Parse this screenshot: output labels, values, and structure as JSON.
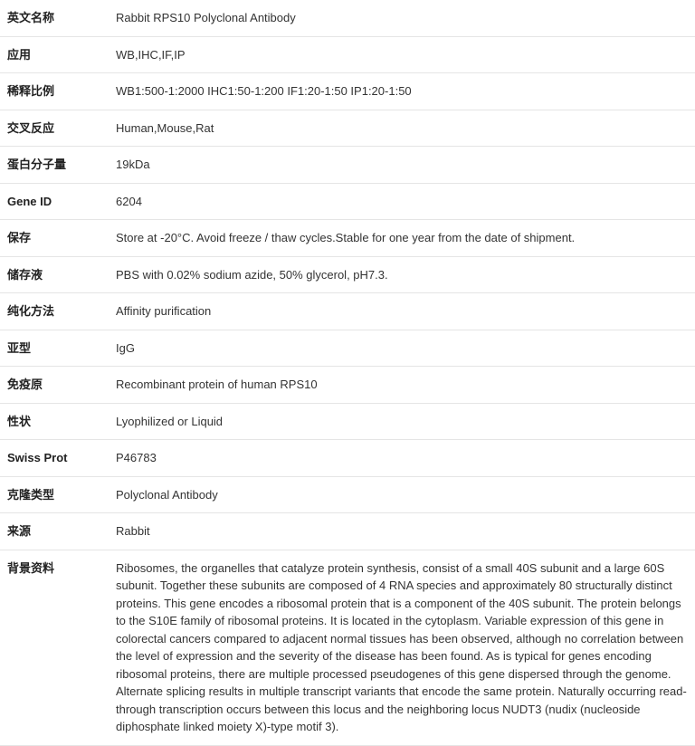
{
  "rows": [
    {
      "label": "英文名称",
      "value": "Rabbit RPS10 Polyclonal Antibody"
    },
    {
      "label": "应用",
      "value": "WB,IHC,IF,IP"
    },
    {
      "label": "稀释比例",
      "value": "WB1:500-1:2000 IHC1:50-1:200 IF1:20-1:50 IP1:20-1:50"
    },
    {
      "label": "交叉反应",
      "value": "Human,Mouse,Rat"
    },
    {
      "label": "蛋白分子量",
      "value": "19kDa"
    },
    {
      "label": "Gene ID",
      "value": "6204"
    },
    {
      "label": "保存",
      "value": "Store at -20°C. Avoid freeze / thaw cycles.Stable for one year from the date of shipment."
    },
    {
      "label": "储存液",
      "value": "PBS with 0.02% sodium azide, 50% glycerol, pH7.3."
    },
    {
      "label": "纯化方法",
      "value": "Affinity purification"
    },
    {
      "label": "亚型",
      "value": "IgG"
    },
    {
      "label": "免疫原",
      "value": "Recombinant protein of human RPS10"
    },
    {
      "label": "性状",
      "value": "Lyophilized or Liquid"
    },
    {
      "label": "Swiss Prot",
      "value": "P46783"
    },
    {
      "label": "克隆类型",
      "value": "Polyclonal Antibody"
    },
    {
      "label": "来源",
      "value": "Rabbit"
    },
    {
      "label": "背景资料",
      "value": "Ribosomes, the organelles that catalyze protein synthesis, consist of a small 40S subunit and a large 60S subunit. Together these subunits are composed of 4 RNA species and approximately 80 structurally distinct proteins. This gene encodes a ribosomal protein that is a component of the 40S subunit. The protein belongs to the S10E family of ribosomal proteins. It is located in the cytoplasm. Variable expression of this gene in colorectal cancers compared to adjacent normal tissues has been observed, although no correlation between the level of expression and the severity of the disease has been found. As is typical for genes encoding ribosomal proteins, there are multiple processed pseudogenes of this gene dispersed through the genome. Alternate splicing results in multiple transcript variants that encode the same protein. Naturally occurring read-through transcription occurs between this locus and the neighboring locus NUDT3 (nudix (nucleoside diphosphate linked moiety X)-type motif 3)."
    }
  ]
}
